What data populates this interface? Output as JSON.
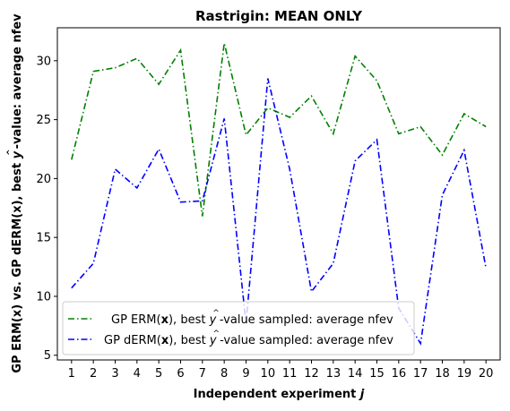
{
  "chart_data": {
    "type": "line",
    "title": "Rastrigin: MEAN ONLY",
    "xlabel_main": "Independent experiment ",
    "xlabel_var": "j",
    "ylabel_main": "GP ERM(x) vs. GP dERM(x), best ",
    "ylabel_hat": "y",
    "ylabel_tail": "-value: average nfev",
    "x": [
      1,
      2,
      3,
      4,
      5,
      6,
      7,
      8,
      9,
      10,
      11,
      12,
      13,
      14,
      15,
      16,
      17,
      18,
      19,
      20
    ],
    "xticks": [
      "1",
      "2",
      "3",
      "4",
      "5",
      "6",
      "7",
      "8",
      "9",
      "10",
      "11",
      "12",
      "13",
      "14",
      "15",
      "16",
      "17",
      "18",
      "19",
      "20"
    ],
    "yticks": [
      "5",
      "10",
      "15",
      "20",
      "25",
      "30"
    ],
    "xlim": [
      0.35,
      20.65
    ],
    "ylim": [
      4.6,
      32.8
    ],
    "legend_position": "lower-left",
    "series": [
      {
        "legend_pre": "GP ERM(",
        "legend_bold": "x",
        "legend_mid": "), best ",
        "legend_hat": "y",
        "legend_post": "-value sampled: average nfev",
        "color": "#008000",
        "values": [
          21.6,
          29.1,
          29.4,
          30.2,
          28.0,
          30.9,
          16.8,
          31.5,
          23.7,
          26.0,
          25.2,
          27.0,
          23.8,
          30.4,
          28.3,
          23.8,
          24.4,
          22.0,
          25.5,
          24.4
        ]
      },
      {
        "legend_pre": "GP dERM(",
        "legend_bold": "x",
        "legend_mid": "), best ",
        "legend_hat": "y",
        "legend_post": "-value sampled: average nfev",
        "color": "#0000ff",
        "values": [
          10.7,
          12.8,
          20.8,
          19.2,
          22.5,
          18.0,
          18.1,
          25.1,
          7.7,
          28.5,
          20.8,
          10.4,
          12.8,
          21.5,
          23.3,
          9.0,
          6.0,
          18.6,
          22.4,
          12.4
        ]
      }
    ]
  }
}
